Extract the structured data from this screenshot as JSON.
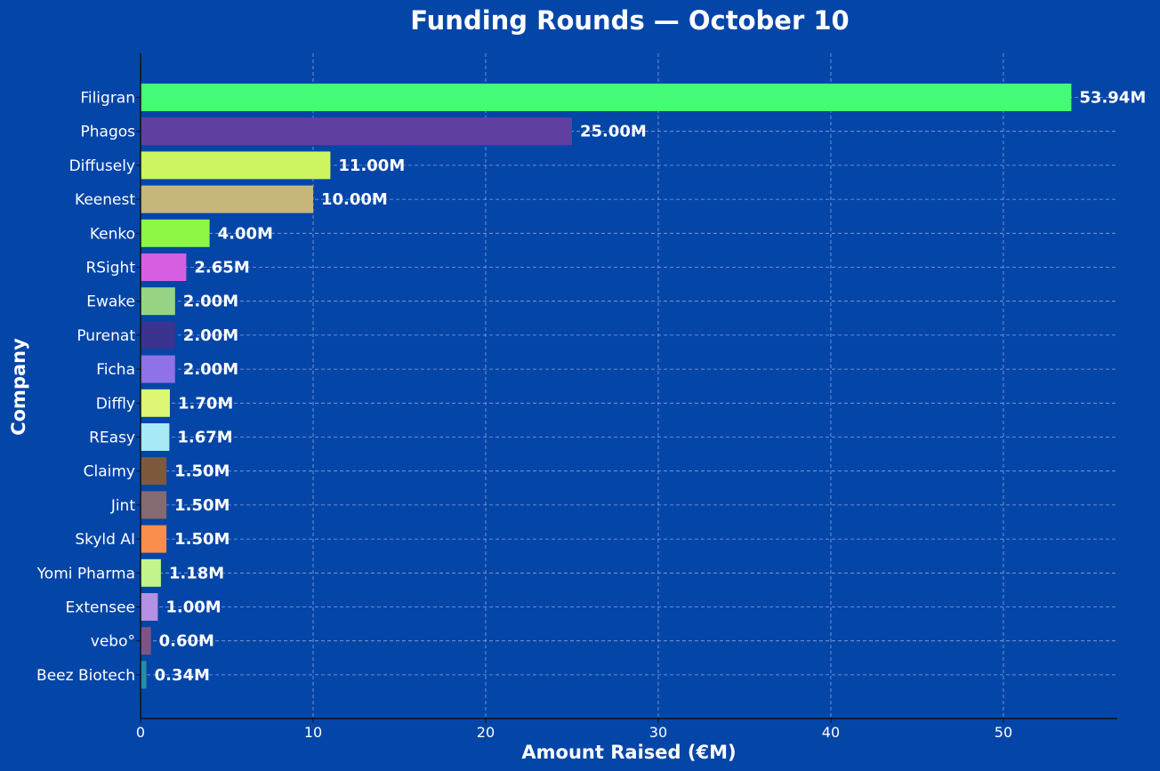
{
  "chart_data": {
    "type": "bar",
    "orientation": "horizontal",
    "title": "Funding Rounds — October 10",
    "xlabel": "Amount Raised (€M)",
    "ylabel": "Company",
    "xlim": [
      0,
      56.6
    ],
    "xticks": [
      0,
      10,
      20,
      30,
      40,
      50
    ],
    "grid": true,
    "colors": {
      "background": "#0445a8",
      "grid": "#8aa3d4",
      "axis": "#111111",
      "text": "#ffffff"
    },
    "bars": [
      {
        "category": "Filigran",
        "value": 53.94,
        "label": "53.94M",
        "color": "#43fb77"
      },
      {
        "category": "Phagos",
        "value": 25.0,
        "label": "25.00M",
        "color": "#5f3fa0"
      },
      {
        "category": "Diffusely",
        "value": 11.0,
        "label": "11.00M",
        "color": "#cdf560"
      },
      {
        "category": "Keenest",
        "value": 10.0,
        "label": "10.00M",
        "color": "#c7b67a"
      },
      {
        "category": "Kenko",
        "value": 4.0,
        "label": "4.00M",
        "color": "#8ef845"
      },
      {
        "category": "RSight",
        "value": 2.65,
        "label": "2.65M",
        "color": "#d65ee0"
      },
      {
        "category": "Ewake",
        "value": 2.0,
        "label": "2.00M",
        "color": "#97d584"
      },
      {
        "category": "Purenat",
        "value": 2.0,
        "label": "2.00M",
        "color": "#3a3390"
      },
      {
        "category": "Ficha",
        "value": 2.0,
        "label": "2.00M",
        "color": "#8e72e6"
      },
      {
        "category": "Diffly",
        "value": 1.7,
        "label": "1.70M",
        "color": "#ddf674"
      },
      {
        "category": "REasy",
        "value": 1.67,
        "label": "1.67M",
        "color": "#a7e9f7"
      },
      {
        "category": "Claimy",
        "value": 1.5,
        "label": "1.50M",
        "color": "#7d5a3d"
      },
      {
        "category": "Jint",
        "value": 1.5,
        "label": "1.50M",
        "color": "#856b6f"
      },
      {
        "category": "Skyld AI",
        "value": 1.5,
        "label": "1.50M",
        "color": "#f98d4b"
      },
      {
        "category": "Yomi Pharma",
        "value": 1.18,
        "label": "1.18M",
        "color": "#c2f58e"
      },
      {
        "category": "Extensee",
        "value": 1.0,
        "label": "1.00M",
        "color": "#b491e3"
      },
      {
        "category": "vebo°",
        "value": 0.6,
        "label": "0.60M",
        "color": "#7e5484"
      },
      {
        "category": "Beez Biotech",
        "value": 0.34,
        "label": "0.34M",
        "color": "#2a8ca6"
      }
    ]
  }
}
